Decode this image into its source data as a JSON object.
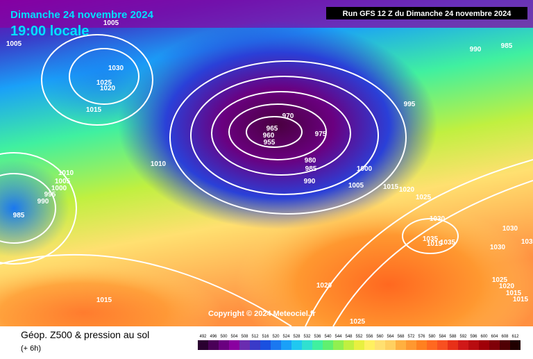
{
  "header": {
    "date": "Dimanche 24 novembre 2024",
    "time": "19:00 locale",
    "run": "Run GFS 12 Z du Dimanche 24 novembre 2024"
  },
  "copyright": "Copyright © 2024 Meteociel.fr",
  "footer": {
    "title": "Géop. Z500 & pression au sol",
    "lead": "(+ 6h)"
  },
  "isobar_labels": [
    "1005",
    "1005",
    "1030",
    "1025",
    "1020",
    "1015",
    "1010",
    "1005",
    "1000",
    "995",
    "990",
    "985",
    "1010",
    "970",
    "965",
    "960",
    "955",
    "975",
    "980",
    "985",
    "990",
    "1000",
    "1005",
    "1015",
    "1020",
    "1025",
    "1030",
    "1035",
    "1035",
    "1015",
    "1030",
    "1030",
    "1025",
    "1020",
    "1015",
    "1015",
    "1020",
    "1015",
    "1025",
    "995",
    "990",
    "985",
    "1030"
  ],
  "legend": {
    "labels": [
      492,
      496,
      500,
      504,
      508,
      512,
      516,
      520,
      524,
      528,
      532,
      536,
      540,
      544,
      548,
      552,
      556,
      560,
      564,
      568,
      572,
      576,
      580,
      584,
      588,
      592,
      596,
      600,
      604,
      608,
      612
    ],
    "colors": [
      "#2a0030",
      "#4a0058",
      "#6a0080",
      "#8a00a0",
      "#6a2cb0",
      "#3a3ac8",
      "#1a50e0",
      "#1a78f0",
      "#1aa0f8",
      "#20c8f0",
      "#30e0d0",
      "#40f0a0",
      "#60f070",
      "#90f050",
      "#c0f040",
      "#e8f040",
      "#fff060",
      "#ffe070",
      "#ffd060",
      "#ffb040",
      "#ff9830",
      "#ff8020",
      "#ff6820",
      "#f85020",
      "#e83018",
      "#d01818",
      "#b80c10",
      "#a00008",
      "#800008",
      "#500004",
      "#200000"
    ]
  }
}
